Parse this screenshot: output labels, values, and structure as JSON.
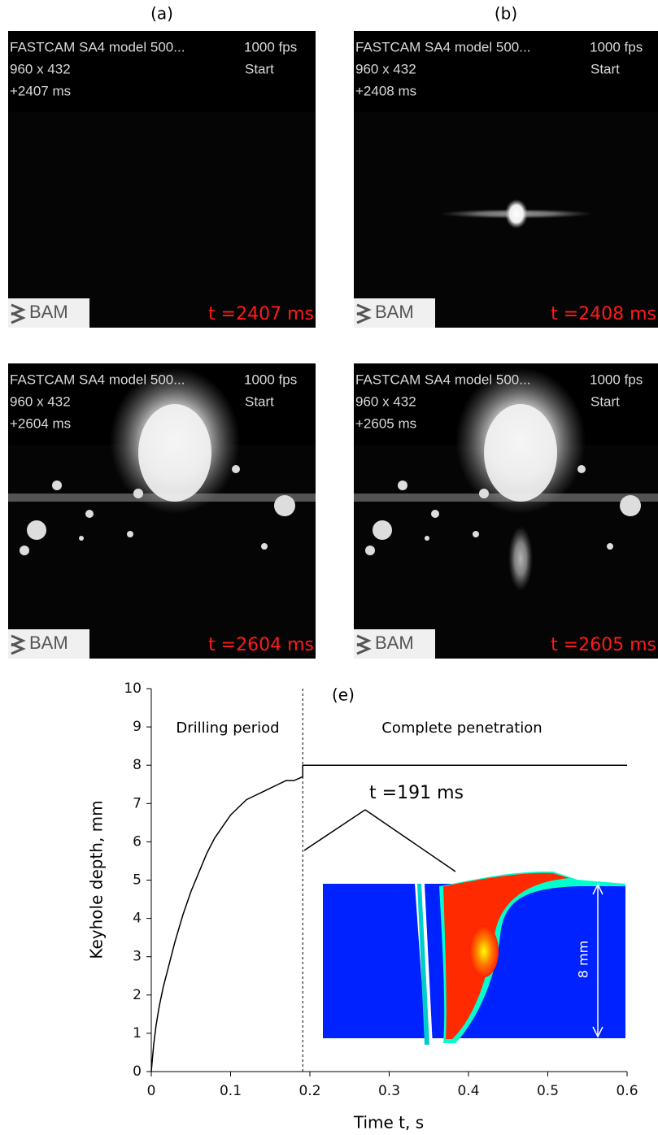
{
  "panels": [
    {
      "label": "(a)",
      "camera": "FASTCAM SA4 model 500...",
      "fps": "1000 fps",
      "resolution": "960 x 432",
      "mode": "Start",
      "offset": "+2407 ms",
      "logo": "BAM",
      "time": "t =2407 ms"
    },
    {
      "label": "(b)",
      "camera": "FASTCAM SA4 model 500...",
      "fps": "1000 fps",
      "resolution": "960 x 432",
      "mode": "Start",
      "offset": "+2408 ms",
      "logo": "BAM",
      "time": "t =2408 ms"
    },
    {
      "camera": "FASTCAM SA4 model 500...",
      "fps": "1000 fps",
      "resolution": "960 x 432",
      "mode": "Start",
      "offset": "+2604 ms",
      "logo": "BAM",
      "time": "t =2604 ms"
    },
    {
      "camera": "FASTCAM SA4 model 500...",
      "fps": "1000 fps",
      "resolution": "960 x 432",
      "mode": "Start",
      "offset": "+2605 ms",
      "logo": "BAM",
      "time": "t =2605 ms"
    }
  ],
  "chart_data": {
    "type": "line",
    "annotation": "(e)",
    "xlabel": "Time t, s",
    "ylabel": "Keyhole depth, mm",
    "regions": [
      "Drilling period",
      "Complete penetration"
    ],
    "inset_label": "t =191 ms",
    "inset_dimension": "8 mm",
    "divider_x": 0.191,
    "xlim": [
      0,
      0.6
    ],
    "xticks": [
      0,
      0.1,
      0.2,
      0.3,
      0.4,
      0.5,
      0.6
    ],
    "ylim": [
      0,
      10
    ],
    "yticks": [
      0,
      1,
      2,
      3,
      4,
      5,
      6,
      7,
      8,
      9,
      10
    ],
    "series": [
      {
        "color": "#000000",
        "x": [
          0,
          0.003,
          0.006,
          0.01,
          0.015,
          0.02,
          0.03,
          0.04,
          0.05,
          0.06,
          0.07,
          0.08,
          0.09,
          0.1,
          0.11,
          0.12,
          0.13,
          0.14,
          0.15,
          0.16,
          0.17,
          0.18,
          0.191,
          0.191,
          0.6
        ],
        "values": [
          0,
          0.7,
          1.2,
          1.7,
          2.2,
          2.6,
          3.4,
          4.1,
          4.7,
          5.2,
          5.7,
          6.1,
          6.4,
          6.7,
          6.9,
          7.1,
          7.2,
          7.3,
          7.4,
          7.5,
          7.6,
          7.6,
          7.7,
          8,
          8
        ]
      }
    ]
  }
}
